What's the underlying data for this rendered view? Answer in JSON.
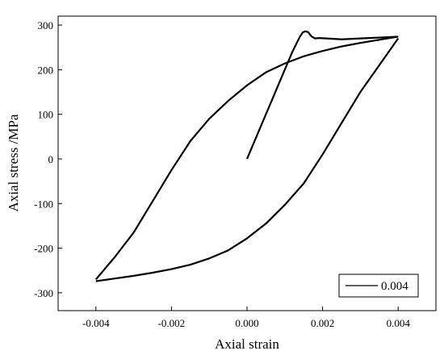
{
  "chart_data": {
    "type": "line",
    "title": "",
    "xlabel": "Axial strain",
    "ylabel": "Axial stress /MPa",
    "xlim": [
      -0.005,
      0.005
    ],
    "ylim": [
      -340,
      320
    ],
    "x_ticks": [
      -0.004,
      -0.002,
      0.0,
      0.002,
      0.004
    ],
    "x_tick_labels": [
      "-0.004",
      "-0.002",
      "0.000",
      "0.002",
      "0.004"
    ],
    "y_ticks": [
      -300,
      -200,
      -100,
      0,
      100,
      200,
      300
    ],
    "y_tick_labels": [
      "-300",
      "-200",
      "-100",
      "0",
      "100",
      "200",
      "300"
    ],
    "grid": false,
    "legend_position": "bottom-right",
    "series": [
      {
        "name": "0.004",
        "color": "#000000",
        "segments": [
          {
            "part": "initial-loading",
            "x": [
              0.0,
              0.0004,
              0.0008,
              0.0012,
              0.0014,
              0.00148,
              0.00155,
              0.00162,
              0.0017,
              0.0018,
              0.0019,
              0.0021,
              0.0025,
              0.003,
              0.0035,
              0.004
            ],
            "y": [
              0,
              80,
              160,
              240,
              274,
              284,
              286,
              284,
              275,
              270,
              271,
              270,
              268,
              270,
              272,
              274
            ]
          },
          {
            "part": "upper-branch",
            "x": [
              0.004,
              0.0035,
              0.003,
              0.0025,
              0.002,
              0.0015,
              0.001,
              0.0005,
              0.0,
              -0.0005,
              -0.001,
              -0.0015,
              -0.002,
              -0.0025,
              -0.003,
              -0.0035,
              -0.004
            ],
            "y": [
              274,
              267,
              260,
              252,
              242,
              230,
              214,
              194,
              165,
              130,
              90,
              40,
              -25,
              -95,
              -165,
              -220,
              -270
            ]
          },
          {
            "part": "lower-branch",
            "x": [
              -0.004,
              -0.0035,
              -0.003,
              -0.0025,
              -0.002,
              -0.0015,
              -0.001,
              -0.0005,
              0.0,
              0.0005,
              0.001,
              0.0015,
              0.002,
              0.0025,
              0.003,
              0.0035,
              0.004
            ],
            "y": [
              -274,
              -268,
              -262,
              -255,
              -247,
              -237,
              -223,
              -205,
              -178,
              -145,
              -103,
              -55,
              10,
              80,
              150,
              210,
              270
            ]
          }
        ]
      }
    ]
  }
}
